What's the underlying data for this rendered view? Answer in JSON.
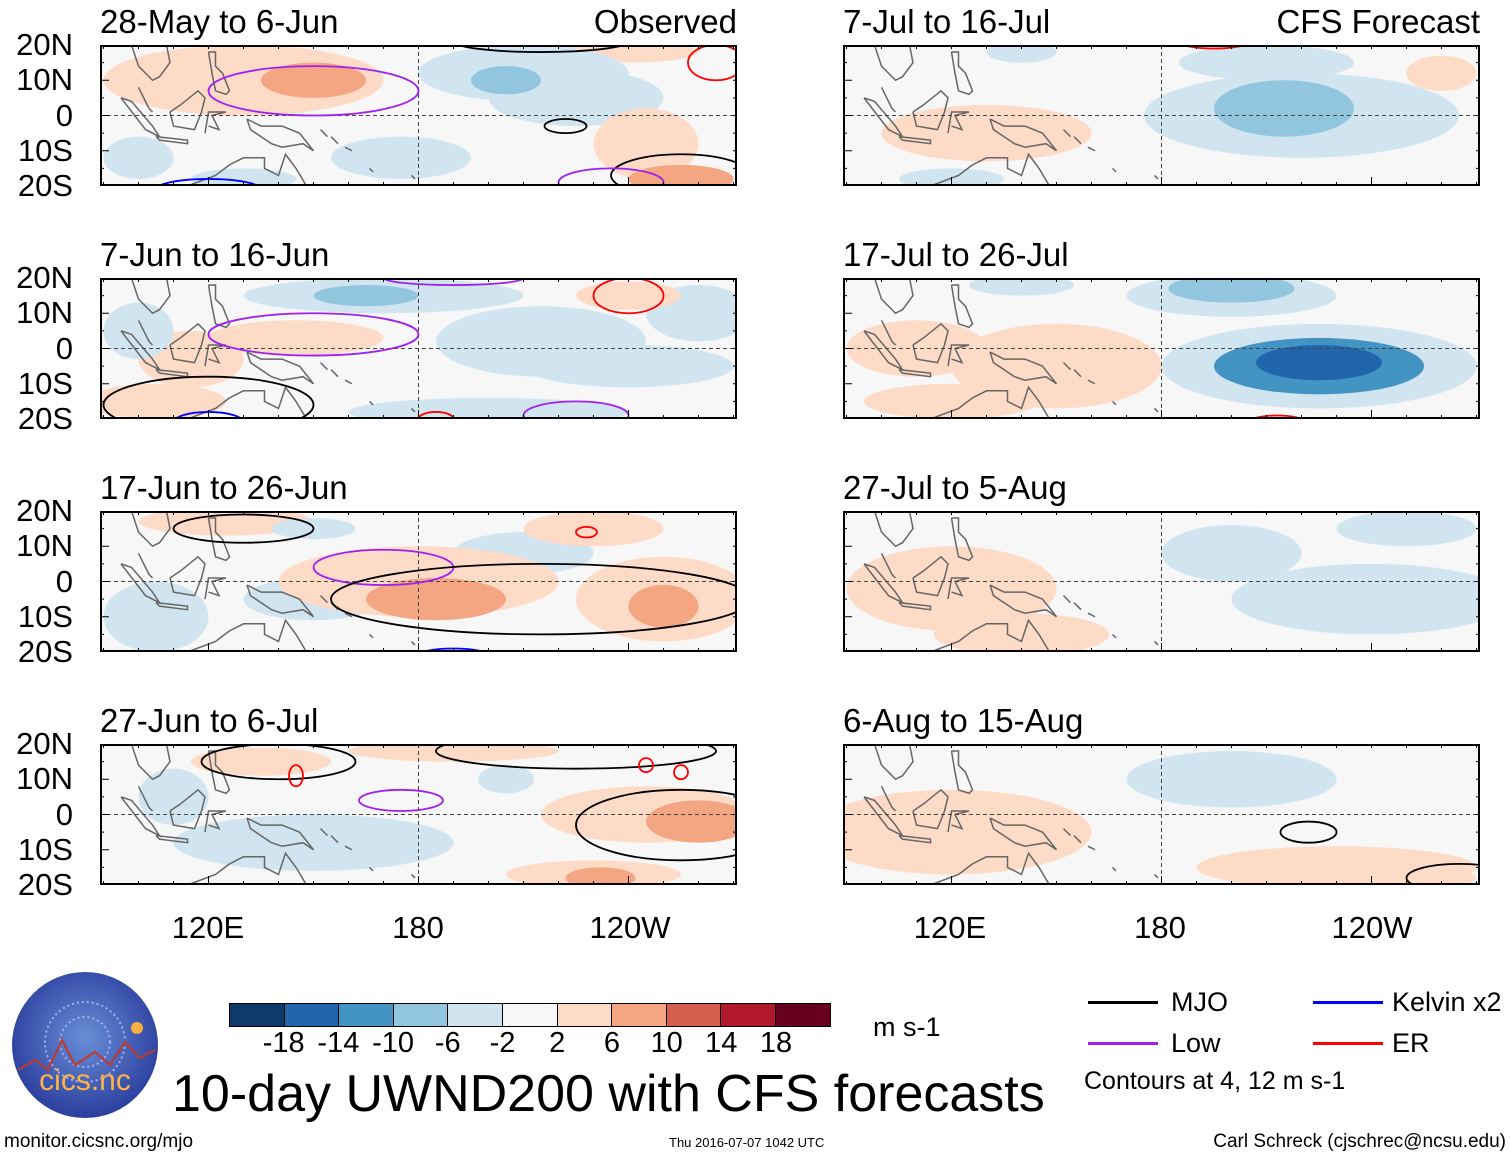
{
  "title": "10-day UWND200 with CFS forecasts",
  "footer": {
    "url": "monitor.cicsnc.org/mjo",
    "timestamp": "Thu 2016-07-07 1042 UTC",
    "author": "Carl Schreck (cjschrec@ncsu.edu)"
  },
  "logo": {
    "text": "cics.nc",
    "ring_text": "Cooperative Institute for Climate and Satellites"
  },
  "colorbar": {
    "unit": "m s-1",
    "ticks": [
      "-18",
      "-14",
      "-10",
      "-6",
      "-2",
      "2",
      "6",
      "10",
      "14",
      "18"
    ],
    "colors": [
      "#0d3a6b",
      "#2166ac",
      "#4393c3",
      "#92c5de",
      "#d1e5f0",
      "#f7f7f7",
      "#fddbc7",
      "#f4a582",
      "#d6604d",
      "#b2182b",
      "#67001f"
    ],
    "bounds": [
      -18,
      -14,
      -10,
      -6,
      -2,
      2,
      6,
      10,
      14,
      18
    ]
  },
  "legend": {
    "items": [
      {
        "label": "MJO",
        "color": "#000000"
      },
      {
        "label": "Kelvin x2",
        "color": "#0000ff"
      },
      {
        "label": "Low",
        "color": "#a020f0"
      },
      {
        "label": "ER",
        "color": "#ff0000"
      }
    ],
    "note": "Contours at 4, 12 m s-1"
  },
  "columns": {
    "left": "Observed",
    "right": "CFS Forecast"
  },
  "axes": {
    "ylabels": [
      "20N",
      "10N",
      "0",
      "10S",
      "20S"
    ],
    "xlabels": [
      "120E",
      "180",
      "120W"
    ],
    "lon_range": [
      89,
      271
    ],
    "lat_range": [
      -20,
      20
    ]
  },
  "chart_data": {
    "type": "heatmap",
    "variable": "200-hPa zonal wind anomaly (m s-1)",
    "panels": [
      {
        "title": "28-May to 6-Jun",
        "source": "Observed",
        "anomalies": [
          {
            "lon": 130,
            "lat": 10,
            "dlon": 40,
            "dlat": 10,
            "value": 3
          },
          {
            "lon": 150,
            "lat": 10,
            "dlon": 15,
            "dlat": 5,
            "value": 7
          },
          {
            "lon": 107,
            "lat": 12,
            "dlon": 10,
            "dlat": 6,
            "value": 3
          },
          {
            "lon": 210,
            "lat": 12,
            "dlon": 30,
            "dlat": 8,
            "value": -4
          },
          {
            "lon": 205,
            "lat": 10,
            "dlon": 10,
            "dlat": 4,
            "value": -8
          },
          {
            "lon": 225,
            "lat": 5,
            "dlon": 25,
            "dlat": 8,
            "value": -3
          },
          {
            "lon": 175,
            "lat": -12,
            "dlon": 20,
            "dlat": 6,
            "value": -3
          },
          {
            "lon": 245,
            "lat": -8,
            "dlon": 15,
            "dlat": 10,
            "value": 3
          },
          {
            "lon": 255,
            "lat": -18,
            "dlon": 15,
            "dlat": 4,
            "value": 8
          },
          {
            "lon": 100,
            "lat": -12,
            "dlon": 10,
            "dlat": 6,
            "value": -3
          },
          {
            "lon": 130,
            "lat": -18,
            "dlon": 15,
            "dlat": 3,
            "value": -3
          },
          {
            "lon": 240,
            "lat": 18,
            "dlon": 20,
            "dlat": 3,
            "value": 3
          }
        ],
        "contours": [
          {
            "type": "Low",
            "lon": 150,
            "lat": 7,
            "dlon": 30,
            "dlat": 7
          },
          {
            "type": "MJO",
            "lon": 222,
            "lat": -3,
            "dlon": 6,
            "dlat": 2
          },
          {
            "type": "MJO",
            "lon": 255,
            "lat": -17,
            "dlon": 20,
            "dlat": 6
          },
          {
            "type": "Kelvin",
            "lon": 120,
            "lat": -21,
            "dlon": 15,
            "dlat": 3
          },
          {
            "type": "Low",
            "lon": 235,
            "lat": -19,
            "dlon": 15,
            "dlat": 4
          },
          {
            "type": "ER",
            "lon": 265,
            "lat": 15,
            "dlon": 8,
            "dlat": 5
          },
          {
            "type": "MJO",
            "lon": 215,
            "lat": 21,
            "dlon": 25,
            "dlat": 3
          }
        ]
      },
      {
        "title": "7-Jun to 16-Jun",
        "source": "Observed",
        "anomalies": [
          {
            "lon": 170,
            "lat": 15,
            "dlon": 40,
            "dlat": 5,
            "value": -5
          },
          {
            "lon": 165,
            "lat": 15,
            "dlon": 15,
            "dlat": 3,
            "value": -9
          },
          {
            "lon": 215,
            "lat": 2,
            "dlon": 30,
            "dlat": 10,
            "value": -4
          },
          {
            "lon": 240,
            "lat": -5,
            "dlon": 30,
            "dlat": 6,
            "value": -3
          },
          {
            "lon": 115,
            "lat": -3,
            "dlon": 15,
            "dlat": 8,
            "value": 3
          },
          {
            "lon": 145,
            "lat": 3,
            "dlon": 25,
            "dlat": 5,
            "value": 3
          },
          {
            "lon": 100,
            "lat": 5,
            "dlon": 10,
            "dlat": 8,
            "value": -3
          },
          {
            "lon": 105,
            "lat": -15,
            "dlon": 20,
            "dlat": 5,
            "value": 3
          },
          {
            "lon": 200,
            "lat": -18,
            "dlon": 40,
            "dlat": 4,
            "value": -3
          },
          {
            "lon": 260,
            "lat": 10,
            "dlon": 15,
            "dlat": 8,
            "value": -3
          },
          {
            "lon": 240,
            "lat": 15,
            "dlon": 15,
            "dlat": 4,
            "value": 3
          }
        ],
        "contours": [
          {
            "type": "Low",
            "lon": 150,
            "lat": 4,
            "dlon": 30,
            "dlat": 6
          },
          {
            "type": "ER",
            "lon": 240,
            "lat": 15,
            "dlon": 10,
            "dlat": 5
          },
          {
            "type": "MJO",
            "lon": 120,
            "lat": -16,
            "dlon": 30,
            "dlat": 8
          },
          {
            "type": "Kelvin",
            "lon": 120,
            "lat": -21,
            "dlon": 10,
            "dlat": 3
          },
          {
            "type": "Low",
            "lon": 225,
            "lat": -19,
            "dlon": 15,
            "dlat": 4
          },
          {
            "type": "ER",
            "lon": 185,
            "lat": -20,
            "dlon": 5,
            "dlat": 2
          },
          {
            "type": "Low",
            "lon": 190,
            "lat": 20,
            "dlon": 20,
            "dlat": 2
          }
        ]
      },
      {
        "title": "17-Jun to 26-Jun",
        "source": "Observed",
        "anomalies": [
          {
            "lon": 125,
            "lat": 17,
            "dlon": 25,
            "dlat": 4,
            "value": 4
          },
          {
            "lon": 150,
            "lat": 15,
            "dlon": 12,
            "dlat": 3,
            "value": -4
          },
          {
            "lon": 180,
            "lat": 0,
            "dlon": 40,
            "dlat": 10,
            "value": 4
          },
          {
            "lon": 185,
            "lat": -5,
            "dlon": 20,
            "dlat": 6,
            "value": 8
          },
          {
            "lon": 250,
            "lat": -5,
            "dlon": 25,
            "dlat": 12,
            "value": 5
          },
          {
            "lon": 250,
            "lat": -7,
            "dlon": 10,
            "dlat": 6,
            "value": 10
          },
          {
            "lon": 105,
            "lat": -10,
            "dlon": 15,
            "dlat": 10,
            "value": -4
          },
          {
            "lon": 210,
            "lat": 8,
            "dlon": 20,
            "dlat": 6,
            "value": -3
          },
          {
            "lon": 230,
            "lat": 15,
            "dlon": 20,
            "dlat": 5,
            "value": 3
          },
          {
            "lon": 150,
            "lat": -5,
            "dlon": 20,
            "dlat": 6,
            "value": -3
          }
        ],
        "contours": [
          {
            "type": "MJO",
            "lon": 130,
            "lat": 15,
            "dlon": 20,
            "dlat": 4
          },
          {
            "type": "Low",
            "lon": 170,
            "lat": 4,
            "dlon": 20,
            "dlat": 5
          },
          {
            "type": "MJO",
            "lon": 215,
            "lat": -5,
            "dlon": 60,
            "dlat": 10
          },
          {
            "type": "ER",
            "lon": 228,
            "lat": 14,
            "dlon": 3,
            "dlat": 1.5
          },
          {
            "type": "Kelvin",
            "lon": 190,
            "lat": -21,
            "dlon": 10,
            "dlat": 2
          }
        ]
      },
      {
        "title": "27-Jun to 6-Jul",
        "source": "Observed",
        "anomalies": [
          {
            "lon": 135,
            "lat": 15,
            "dlon": 20,
            "dlat": 4,
            "value": 5
          },
          {
            "lon": 190,
            "lat": 18,
            "dlon": 30,
            "dlat": 3,
            "value": 3
          },
          {
            "lon": 205,
            "lat": 10,
            "dlon": 8,
            "dlat": 4,
            "value": -4
          },
          {
            "lon": 245,
            "lat": 0,
            "dlon": 30,
            "dlat": 8,
            "value": 5
          },
          {
            "lon": 260,
            "lat": -2,
            "dlon": 15,
            "dlat": 6,
            "value": 10
          },
          {
            "lon": 230,
            "lat": -17,
            "dlon": 25,
            "dlat": 4,
            "value": 5
          },
          {
            "lon": 232,
            "lat": -18,
            "dlon": 10,
            "dlat": 3,
            "value": 10
          },
          {
            "lon": 150,
            "lat": -8,
            "dlon": 40,
            "dlat": 8,
            "value": -3
          },
          {
            "lon": 110,
            "lat": 5,
            "dlon": 10,
            "dlat": 8,
            "value": -3
          }
        ],
        "contours": [
          {
            "type": "MJO",
            "lon": 140,
            "lat": 15,
            "dlon": 22,
            "dlat": 5
          },
          {
            "type": "Low",
            "lon": 175,
            "lat": 4,
            "dlon": 12,
            "dlat": 3
          },
          {
            "type": "MJO",
            "lon": 225,
            "lat": 18,
            "dlon": 40,
            "dlat": 5
          },
          {
            "type": "MJO",
            "lon": 255,
            "lat": -3,
            "dlon": 30,
            "dlat": 10
          },
          {
            "type": "ER",
            "lon": 145,
            "lat": 11,
            "dlon": 2,
            "dlat": 3
          },
          {
            "type": "ER",
            "lon": 245,
            "lat": 14,
            "dlon": 2,
            "dlat": 2
          },
          {
            "type": "ER",
            "lon": 255,
            "lat": 12,
            "dlon": 2,
            "dlat": 2
          }
        ]
      },
      {
        "title": "7-Jul to 16-Jul",
        "source": "CFS Forecast",
        "anomalies": [
          {
            "lon": 220,
            "lat": 0,
            "dlon": 45,
            "dlat": 12,
            "value": -3
          },
          {
            "lon": 215,
            "lat": 2,
            "dlon": 20,
            "dlat": 8,
            "value": -6
          },
          {
            "lon": 222,
            "lat": 0,
            "dlon": 6,
            "dlat": 3,
            "value": -9
          },
          {
            "lon": 210,
            "lat": 15,
            "dlon": 25,
            "dlat": 5,
            "value": -4
          },
          {
            "lon": 130,
            "lat": -5,
            "dlon": 30,
            "dlat": 8,
            "value": 3
          },
          {
            "lon": 140,
            "lat": 18,
            "dlon": 10,
            "dlat": 3,
            "value": -3
          },
          {
            "lon": 260,
            "lat": 12,
            "dlon": 10,
            "dlat": 5,
            "value": 3
          },
          {
            "lon": 120,
            "lat": -18,
            "dlon": 15,
            "dlat": 3,
            "value": -3
          }
        ],
        "contours": [
          {
            "type": "ER",
            "lon": 195,
            "lat": 21,
            "dlon": 10,
            "dlat": 2
          }
        ]
      },
      {
        "title": "17-Jul to 26-Jul",
        "source": "CFS Forecast",
        "anomalies": [
          {
            "lon": 200,
            "lat": 15,
            "dlon": 30,
            "dlat": 6,
            "value": -5
          },
          {
            "lon": 200,
            "lat": 17,
            "dlon": 18,
            "dlat": 4,
            "value": -9
          },
          {
            "lon": 225,
            "lat": -5,
            "dlon": 45,
            "dlat": 12,
            "value": -5
          },
          {
            "lon": 225,
            "lat": -5,
            "dlon": 30,
            "dlat": 8,
            "value": -10
          },
          {
            "lon": 225,
            "lat": -4,
            "dlon": 18,
            "dlat": 5,
            "value": -14
          },
          {
            "lon": 110,
            "lat": 0,
            "dlon": 20,
            "dlat": 8,
            "value": 4
          },
          {
            "lon": 150,
            "lat": -5,
            "dlon": 30,
            "dlat": 12,
            "value": 3
          },
          {
            "lon": 120,
            "lat": -15,
            "dlon": 25,
            "dlat": 5,
            "value": 3
          },
          {
            "lon": 140,
            "lat": 18,
            "dlon": 15,
            "dlat": 3,
            "value": -3
          }
        ],
        "contours": [
          {
            "type": "ER",
            "lon": 213,
            "lat": -21,
            "dlon": 8,
            "dlat": 2
          },
          {
            "type": "ER",
            "lon": 250,
            "lat": 21,
            "dlon": 5,
            "dlat": 1
          }
        ]
      },
      {
        "title": "27-Jul to 5-Aug",
        "source": "CFS Forecast",
        "anomalies": [
          {
            "lon": 120,
            "lat": -2,
            "dlon": 30,
            "dlat": 12,
            "value": 3
          },
          {
            "lon": 105,
            "lat": 2,
            "dlon": 8,
            "dlat": 3,
            "value": 6
          },
          {
            "lon": 200,
            "lat": 8,
            "dlon": 20,
            "dlat": 8,
            "value": -3
          },
          {
            "lon": 240,
            "lat": -5,
            "dlon": 40,
            "dlat": 10,
            "value": -3
          },
          {
            "lon": 250,
            "lat": 15,
            "dlon": 20,
            "dlat": 5,
            "value": -3
          },
          {
            "lon": 140,
            "lat": -15,
            "dlon": 25,
            "dlat": 6,
            "value": 3
          }
        ],
        "contours": []
      },
      {
        "title": "6-Aug to 15-Aug",
        "source": "CFS Forecast",
        "anomalies": [
          {
            "lon": 200,
            "lat": 10,
            "dlon": 30,
            "dlat": 8,
            "value": -3
          },
          {
            "lon": 200,
            "lat": 10,
            "dlon": 15,
            "dlat": 5,
            "value": -5
          },
          {
            "lon": 120,
            "lat": -5,
            "dlon": 40,
            "dlat": 12,
            "value": 3
          },
          {
            "lon": 230,
            "lat": -15,
            "dlon": 40,
            "dlat": 6,
            "value": 3
          },
          {
            "lon": 250,
            "lat": -18,
            "dlon": 20,
            "dlat": 3,
            "value": 3
          }
        ],
        "contours": [
          {
            "type": "MJO",
            "lon": 222,
            "lat": -5,
            "dlon": 8,
            "dlat": 3
          },
          {
            "type": "MJO",
            "lon": 265,
            "lat": -18,
            "dlon": 15,
            "dlat": 4
          }
        ]
      }
    ]
  }
}
